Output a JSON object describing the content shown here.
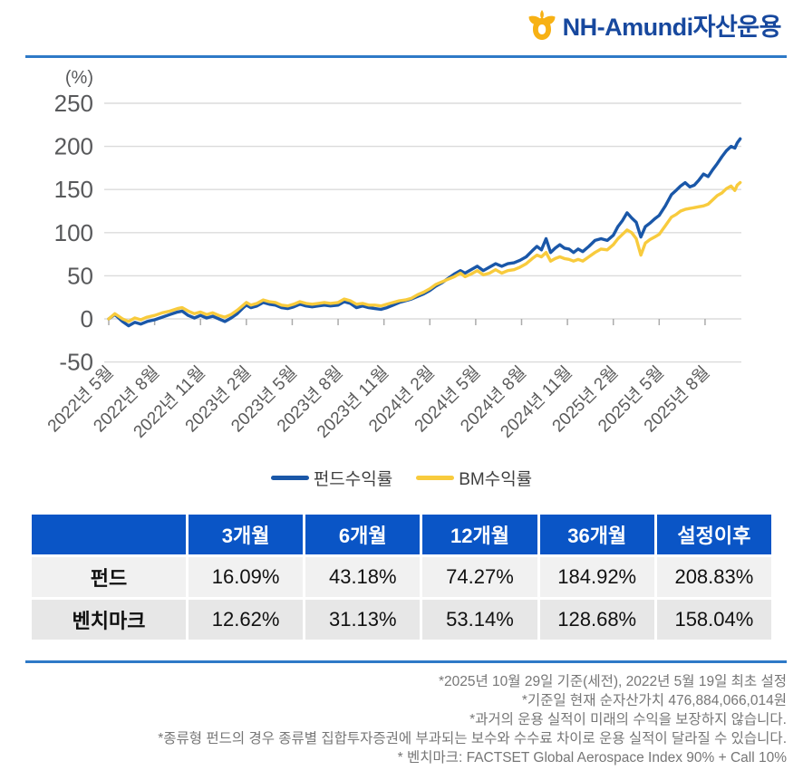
{
  "brand": {
    "name_en": "NH-Amundi",
    "name_ko": "자산운용"
  },
  "colors": {
    "brand_blue": "#17489E",
    "brand_gold": "#F7B114",
    "divider_blue": "#2E79C7",
    "fund_line": "#1A57A8",
    "bm_line": "#F8CB3D",
    "grid_line": "#DBDBDB",
    "tick_mark": "#ABABAB",
    "table_header_bg": "#0A55C6"
  },
  "chart_data": {
    "type": "line",
    "title": "",
    "ylabel": "(%)",
    "xlabel": "",
    "grid": true,
    "legend_position": "bottom",
    "ylim": [
      -50,
      250
    ],
    "y_ticks": [
      250,
      200,
      150,
      100,
      50,
      0,
      -50
    ],
    "x_unit": "months since 2022-05",
    "xlim_months": [
      0,
      41.5
    ],
    "x_ticks": [
      {
        "m": 0,
        "label": "2022년 5월"
      },
      {
        "m": 3,
        "label": "2022년 8월"
      },
      {
        "m": 6,
        "label": "2022년 11월"
      },
      {
        "m": 9,
        "label": "2023년 2월"
      },
      {
        "m": 12,
        "label": "2023년 5월"
      },
      {
        "m": 15,
        "label": "2023년 8월"
      },
      {
        "m": 18,
        "label": "2023년 11월"
      },
      {
        "m": 21,
        "label": "2024년 2월"
      },
      {
        "m": 24,
        "label": "2024년 5월"
      },
      {
        "m": 27,
        "label": "2024년 8월"
      },
      {
        "m": 30,
        "label": "2024년 11월"
      },
      {
        "m": 33,
        "label": "2025년 2월"
      },
      {
        "m": 36,
        "label": "2025년 5월"
      },
      {
        "m": 39,
        "label": "2025년 8월"
      }
    ],
    "series": [
      {
        "key": "fund",
        "name": "펀드수익률",
        "color": "#1A57A8",
        "final_value": 208.83,
        "points": [
          [
            0,
            0
          ],
          [
            0.4,
            5
          ],
          [
            0.9,
            -3
          ],
          [
            1.3,
            -8
          ],
          [
            1.7,
            -4
          ],
          [
            2.1,
            -6
          ],
          [
            2.5,
            -3
          ],
          [
            3,
            -1
          ],
          [
            3.5,
            2
          ],
          [
            4,
            5
          ],
          [
            4.5,
            8
          ],
          [
            4.8,
            9
          ],
          [
            5.2,
            4
          ],
          [
            5.6,
            1
          ],
          [
            6,
            4
          ],
          [
            6.4,
            1
          ],
          [
            6.8,
            3
          ],
          [
            7.2,
            0
          ],
          [
            7.6,
            -3
          ],
          [
            8,
            1
          ],
          [
            8.4,
            6
          ],
          [
            8.8,
            13
          ],
          [
            9,
            16
          ],
          [
            9.3,
            13
          ],
          [
            9.7,
            15
          ],
          [
            10.1,
            19
          ],
          [
            10.5,
            17
          ],
          [
            10.9,
            16
          ],
          [
            11.3,
            13
          ],
          [
            11.7,
            12
          ],
          [
            12.1,
            14
          ],
          [
            12.5,
            17
          ],
          [
            12.9,
            15
          ],
          [
            13.3,
            14
          ],
          [
            13.7,
            15
          ],
          [
            14.1,
            16
          ],
          [
            14.5,
            15
          ],
          [
            15,
            16
          ],
          [
            15.4,
            20
          ],
          [
            15.8,
            18
          ],
          [
            16.2,
            13
          ],
          [
            16.6,
            15
          ],
          [
            17,
            13
          ],
          [
            17.4,
            12
          ],
          [
            17.8,
            11
          ],
          [
            18.2,
            13
          ],
          [
            18.6,
            16
          ],
          [
            19,
            19
          ],
          [
            19.4,
            21
          ],
          [
            19.8,
            23
          ],
          [
            20.2,
            26
          ],
          [
            20.6,
            29
          ],
          [
            21,
            33
          ],
          [
            21.4,
            38
          ],
          [
            21.8,
            42
          ],
          [
            22.2,
            47
          ],
          [
            22.6,
            52
          ],
          [
            23,
            56
          ],
          [
            23.3,
            53
          ],
          [
            23.7,
            57
          ],
          [
            24.1,
            61
          ],
          [
            24.5,
            56
          ],
          [
            24.9,
            60
          ],
          [
            25.3,
            64
          ],
          [
            25.7,
            61
          ],
          [
            26.1,
            64
          ],
          [
            26.5,
            65
          ],
          [
            26.9,
            68
          ],
          [
            27.3,
            72
          ],
          [
            27.7,
            79
          ],
          [
            28,
            84
          ],
          [
            28.3,
            80
          ],
          [
            28.6,
            93
          ],
          [
            28.9,
            77
          ],
          [
            29.2,
            82
          ],
          [
            29.5,
            86
          ],
          [
            29.8,
            82
          ],
          [
            30.1,
            81
          ],
          [
            30.4,
            77
          ],
          [
            30.7,
            81
          ],
          [
            31,
            78
          ],
          [
            31.4,
            84
          ],
          [
            31.8,
            91
          ],
          [
            32.2,
            93
          ],
          [
            32.6,
            91
          ],
          [
            33,
            97
          ],
          [
            33.3,
            107
          ],
          [
            33.6,
            114
          ],
          [
            33.9,
            123
          ],
          [
            34.2,
            117
          ],
          [
            34.5,
            112
          ],
          [
            34.8,
            95
          ],
          [
            35.1,
            107
          ],
          [
            35.4,
            111
          ],
          [
            35.7,
            116
          ],
          [
            36,
            120
          ],
          [
            36.4,
            131
          ],
          [
            36.8,
            144
          ],
          [
            37.1,
            149
          ],
          [
            37.4,
            154
          ],
          [
            37.7,
            158
          ],
          [
            38,
            153
          ],
          [
            38.3,
            155
          ],
          [
            38.6,
            161
          ],
          [
            38.9,
            168
          ],
          [
            39.2,
            165
          ],
          [
            39.5,
            173
          ],
          [
            39.8,
            180
          ],
          [
            40.1,
            188
          ],
          [
            40.4,
            195
          ],
          [
            40.7,
            200
          ],
          [
            40.95,
            198
          ],
          [
            41.1,
            204
          ],
          [
            41.3,
            208.83
          ]
        ]
      },
      {
        "key": "bm",
        "name": "BM수익률",
        "color": "#F8CB3D",
        "final_value": 158.04,
        "points": [
          [
            0,
            0
          ],
          [
            0.4,
            6
          ],
          [
            0.9,
            0
          ],
          [
            1.3,
            -3
          ],
          [
            1.7,
            1
          ],
          [
            2.1,
            -1
          ],
          [
            2.5,
            2
          ],
          [
            3,
            4
          ],
          [
            3.5,
            7
          ],
          [
            4,
            9
          ],
          [
            4.5,
            12
          ],
          [
            4.8,
            13
          ],
          [
            5.2,
            9
          ],
          [
            5.6,
            6
          ],
          [
            6,
            8
          ],
          [
            6.4,
            5
          ],
          [
            6.8,
            7
          ],
          [
            7.2,
            4
          ],
          [
            7.6,
            2
          ],
          [
            8,
            5
          ],
          [
            8.4,
            10
          ],
          [
            8.8,
            16
          ],
          [
            9,
            19
          ],
          [
            9.3,
            16
          ],
          [
            9.7,
            18
          ],
          [
            10.1,
            22
          ],
          [
            10.5,
            20
          ],
          [
            10.9,
            19
          ],
          [
            11.3,
            16
          ],
          [
            11.7,
            15
          ],
          [
            12.1,
            17
          ],
          [
            12.5,
            20
          ],
          [
            12.9,
            18
          ],
          [
            13.3,
            17
          ],
          [
            13.7,
            18
          ],
          [
            14.1,
            19
          ],
          [
            14.5,
            18
          ],
          [
            15,
            19
          ],
          [
            15.4,
            23
          ],
          [
            15.8,
            21
          ],
          [
            16.2,
            17
          ],
          [
            16.6,
            18
          ],
          [
            17,
            16
          ],
          [
            17.4,
            16
          ],
          [
            17.8,
            15
          ],
          [
            18.2,
            17
          ],
          [
            18.6,
            19
          ],
          [
            19,
            21
          ],
          [
            19.4,
            22
          ],
          [
            19.8,
            24
          ],
          [
            20.2,
            28
          ],
          [
            20.6,
            31
          ],
          [
            21,
            35
          ],
          [
            21.4,
            40
          ],
          [
            21.8,
            43
          ],
          [
            22.2,
            46
          ],
          [
            22.6,
            49
          ],
          [
            23,
            53
          ],
          [
            23.3,
            49
          ],
          [
            23.7,
            52
          ],
          [
            24.1,
            56
          ],
          [
            24.5,
            51
          ],
          [
            24.9,
            53
          ],
          [
            25.3,
            57
          ],
          [
            25.7,
            53
          ],
          [
            26.1,
            56
          ],
          [
            26.5,
            57
          ],
          [
            26.9,
            60
          ],
          [
            27.3,
            64
          ],
          [
            27.7,
            70
          ],
          [
            28,
            74
          ],
          [
            28.3,
            72
          ],
          [
            28.6,
            77
          ],
          [
            28.9,
            67
          ],
          [
            29.2,
            70
          ],
          [
            29.5,
            72
          ],
          [
            29.8,
            70
          ],
          [
            30.1,
            69
          ],
          [
            30.4,
            67
          ],
          [
            30.7,
            69
          ],
          [
            31,
            67
          ],
          [
            31.4,
            72
          ],
          [
            31.8,
            77
          ],
          [
            32.2,
            81
          ],
          [
            32.6,
            80
          ],
          [
            33,
            86
          ],
          [
            33.3,
            93
          ],
          [
            33.6,
            98
          ],
          [
            33.9,
            103
          ],
          [
            34.2,
            100
          ],
          [
            34.5,
            93
          ],
          [
            34.8,
            74
          ],
          [
            35.1,
            88
          ],
          [
            35.4,
            92
          ],
          [
            35.7,
            95
          ],
          [
            36,
            98
          ],
          [
            36.4,
            108
          ],
          [
            36.8,
            118
          ],
          [
            37.1,
            121
          ],
          [
            37.4,
            125
          ],
          [
            37.7,
            127
          ],
          [
            38,
            128
          ],
          [
            38.3,
            129
          ],
          [
            38.6,
            130
          ],
          [
            38.9,
            131
          ],
          [
            39.2,
            133
          ],
          [
            39.5,
            138
          ],
          [
            39.8,
            143
          ],
          [
            40.1,
            146
          ],
          [
            40.4,
            151
          ],
          [
            40.7,
            154
          ],
          [
            40.95,
            149
          ],
          [
            41.1,
            155
          ],
          [
            41.3,
            158.04
          ]
        ]
      }
    ]
  },
  "table": {
    "columns": [
      "",
      "3개월",
      "6개월",
      "12개월",
      "36개월",
      "설정이후"
    ],
    "rows": [
      {
        "label": "펀드",
        "values": [
          "16.09%",
          "43.18%",
          "74.27%",
          "184.92%",
          "208.83%"
        ]
      },
      {
        "label": "벤치마크",
        "values": [
          "12.62%",
          "31.13%",
          "53.14%",
          "128.68%",
          "158.04%"
        ]
      }
    ]
  },
  "footnotes": [
    "*2025년 10월 29일 기준(세전), 2022년 5월 19일 최초 설정",
    "*기준일 현재 순자산가치 476,884,066,014원",
    "*과거의 운용 실적이 미래의 수익을 보장하지 않습니다.",
    "*종류형 펀드의 경우 종류별 집합투자증권에 부과되는 보수와 수수료 차이로 운용 실적이 달라질 수 있습니다.",
    "* 벤치마크: FACTSET Global Aerospace Index 90% + Call 10%"
  ]
}
